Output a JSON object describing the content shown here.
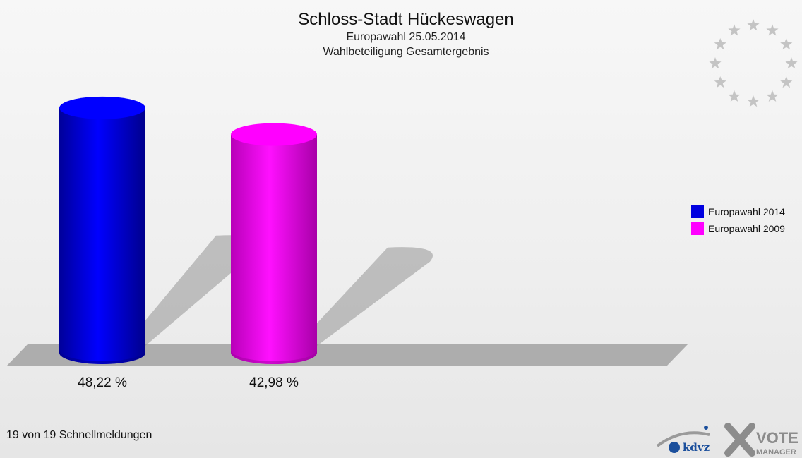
{
  "header": {
    "title": "Schloss-Stadt Hückeswagen",
    "subtitle": "Europawahl 25.05.2014",
    "subtitle2": "Wahlbeteiligung Gesamtergebnis"
  },
  "chart_data": {
    "type": "bar",
    "categories": [
      "Europawahl 2014",
      "Europawahl 2009"
    ],
    "values": [
      48.22,
      42.98
    ],
    "value_labels": [
      "48,22 %",
      "42,98 %"
    ],
    "colors": [
      "#0000e0",
      "#ff00ff"
    ],
    "ylim": [
      0,
      60
    ],
    "grid": false,
    "legend_placement": "right",
    "style": "3d-cylinder"
  },
  "legend": {
    "items": [
      {
        "label": "Europawahl 2014",
        "color": "#0000e0"
      },
      {
        "label": "Europawahl 2009",
        "color": "#ff00ff"
      }
    ]
  },
  "footer": {
    "status": "19 von 19 Schnellmeldungen"
  },
  "logos": {
    "left": "kdvz",
    "right_top": "VOTE",
    "right_bottom": "MANAGER"
  },
  "decor": {
    "emblem": "eu-stars-icon"
  }
}
